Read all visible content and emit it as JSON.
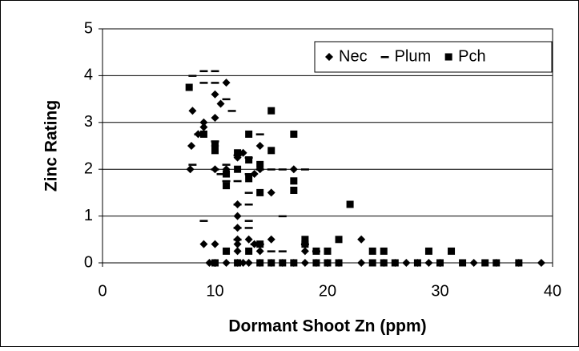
{
  "chart_data": {
    "type": "scatter",
    "x_label": "Dormant Shoot Zn (ppm)",
    "y_label": "Zinc Rating",
    "xlim": [
      0,
      40
    ],
    "ylim": [
      0,
      5
    ],
    "xticks": [
      0,
      10,
      20,
      30,
      40
    ],
    "yticks": [
      0,
      1,
      2,
      3,
      4,
      5
    ],
    "grid": true,
    "legend": "upper right",
    "series": [
      {
        "name": "Nec",
        "marker": "diamond",
        "color": "#000000",
        "x": [
          7.8,
          7.9,
          8,
          8.5,
          9,
          9,
          9,
          9.5,
          10,
          10,
          10,
          10,
          10,
          10.5,
          11,
          11,
          12,
          12,
          12,
          12,
          12,
          12,
          12,
          12,
          12.5,
          13,
          13,
          13.5,
          13.5,
          14,
          14,
          14,
          14,
          15,
          15,
          15,
          16,
          17,
          17,
          18,
          18,
          19,
          20,
          21,
          23,
          23,
          25,
          26,
          27,
          28,
          29,
          30,
          33,
          35,
          37,
          39,
          11,
          10,
          12.5
        ],
        "values": [
          2,
          2.5,
          3.25,
          2.75,
          2.9,
          3,
          0.4,
          0,
          0.4,
          2.5,
          3.1,
          3.6,
          2,
          3.4,
          3.85,
          2,
          2.25,
          1.25,
          1,
          0.75,
          0.5,
          0.4,
          0.25,
          0,
          2.35,
          0.5,
          0,
          0.4,
          1.9,
          2.5,
          2,
          0.25,
          0,
          1.5,
          0.5,
          0,
          0,
          2,
          0,
          0,
          0.25,
          0,
          0,
          0,
          0.5,
          0,
          0,
          0,
          0,
          0,
          0,
          0,
          0,
          0,
          0,
          0,
          0,
          0,
          0
        ]
      },
      {
        "name": "Plum",
        "marker": "dash",
        "color": "#000000",
        "x": [
          8,
          8,
          8.5,
          9,
          9,
          9,
          10,
          10,
          10,
          10,
          10.5,
          11,
          11.5,
          11,
          11,
          12,
          12,
          12,
          12,
          12,
          13,
          13,
          13,
          13,
          13,
          13,
          13.5,
          14,
          14,
          14,
          15,
          15,
          16,
          16,
          16,
          18,
          18,
          19
        ],
        "values": [
          4,
          2.1,
          2.75,
          4.1,
          3.85,
          0.9,
          4.1,
          3.85,
          2.6,
          2,
          1.9,
          3.5,
          3.25,
          2.1,
          1.75,
          2.3,
          1.75,
          1.25,
          0.75,
          0.5,
          2.25,
          1.9,
          1.5,
          1.25,
          0.9,
          0.75,
          0.4,
          2.75,
          2,
          0.4,
          2,
          0.25,
          2,
          1,
          0.25,
          2,
          0.4,
          0.25
        ]
      },
      {
        "name": "Pch",
        "marker": "square",
        "color": "#000000",
        "x": [
          7.7,
          9,
          10,
          10,
          10,
          11,
          11,
          11,
          12,
          12,
          12,
          13,
          13,
          13,
          13,
          14,
          14,
          14,
          14,
          15,
          15,
          15,
          16,
          17,
          17,
          17,
          17,
          18,
          18,
          19,
          19,
          20,
          20,
          21,
          21,
          22,
          24,
          24,
          25,
          25,
          26,
          28,
          29,
          30,
          31,
          32,
          34,
          35,
          37
        ],
        "values": [
          3.75,
          2.75,
          2.5,
          2.4,
          0,
          1.9,
          1.65,
          0.25,
          2,
          0,
          2.35,
          2.75,
          2.2,
          1.8,
          0.25,
          1.5,
          0.4,
          2.1,
          0,
          3.25,
          2.4,
          0,
          0,
          2.75,
          1.75,
          1.55,
          0,
          0.5,
          0.4,
          0,
          0.25,
          0.25,
          0,
          0.5,
          0,
          1.25,
          0,
          0.25,
          0.25,
          0,
          0,
          0,
          0.25,
          0,
          0.25,
          0,
          0,
          0,
          0
        ]
      }
    ]
  }
}
